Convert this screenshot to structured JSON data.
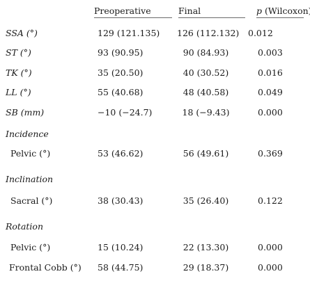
{
  "headers": {
    "preoperative": "Preoperative",
    "final": "Final",
    "p_symbol": "p",
    "p_method": " (Wilcoxon)"
  },
  "rows": [
    {
      "label": "SSA (°)",
      "pre": "129 (121.135)",
      "final": "126 (112.132)",
      "p": "0.012"
    },
    {
      "label": "ST (°)",
      "pre": "93 (90.95)",
      "final": "90 (84.93)",
      "p": "0.003"
    },
    {
      "label": "TK (°)",
      "pre": "35 (20.50)",
      "final": "40 (30.52)",
      "p": "0.016"
    },
    {
      "label": "LL (°)",
      "pre": "55 (40.68)",
      "final": "48 (40.58)",
      "p": "0.049"
    },
    {
      "label": "SB (mm)",
      "pre": "−10 (−24.7)",
      "final": "18 (−9.43)",
      "p": "0.000"
    }
  ],
  "sections": [
    {
      "title": "Incidence",
      "sub_label": "Pelvic (°)",
      "pre": "53 (46.62)",
      "final": "56 (49.61)",
      "p": "0.369"
    },
    {
      "title": "Inclination",
      "sub_label": "Sacral (°)",
      "pre": "38 (30.43)",
      "final": "35 (26.40)",
      "p": "0.122"
    },
    {
      "title": "Rotation",
      "sub_label": "Pelvic (°)",
      "pre": "15 (10.24)",
      "final": "22 (13.30)",
      "p": "0.000"
    }
  ],
  "last_row": {
    "label": "Frontal Cobb (°)",
    "pre": "58 (44.75)",
    "final": "29 (18.37)",
    "p": "0.000"
  }
}
